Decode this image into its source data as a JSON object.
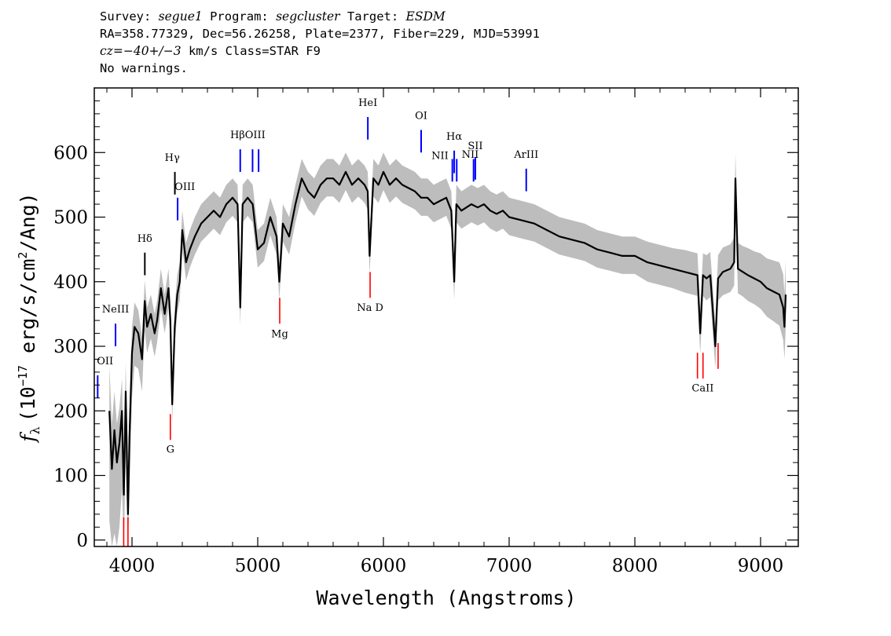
{
  "header": {
    "survey_label": "Survey:",
    "survey": "segue1",
    "program_label": "Program:",
    "program": "segcluster",
    "target_label": "Target:",
    "target": "ESDM",
    "line2": "RA=358.77329, Dec=56.26258, Plate=2377, Fiber=229, MJD=53991",
    "cz_label": "cz=",
    "cz_value": "−40+/−3",
    "cz_rest": " km/s Class=STAR F9",
    "line4": "No warnings."
  },
  "colors": {
    "flux": "#000000",
    "error_band": "#bdbdbd",
    "emission": "#0000ff",
    "absorption": "#ff0000"
  },
  "chart_data": {
    "type": "line",
    "title": "",
    "xlabel": "Wavelength (Angstroms)",
    "ylabel_prefix": "f",
    "ylabel_sub": "λ",
    "ylabel_paren_open": "(10",
    "ylabel_exp": "−17",
    "ylabel_units": " erg/s/cm",
    "ylabel_units_exp": "2",
    "ylabel_tail": "/Ang)",
    "xlim": [
      3700,
      9300
    ],
    "ylim": [
      -10,
      700
    ],
    "xticks": [
      4000,
      5000,
      6000,
      7000,
      8000,
      9000
    ],
    "xtick_labels": [
      "4000",
      "5000",
      "6000",
      "7000",
      "8000",
      "9000"
    ],
    "yticks": [
      0,
      100,
      200,
      300,
      400,
      500,
      600
    ],
    "ytick_labels": [
      "0",
      "100",
      "200",
      "300",
      "400",
      "500",
      "600"
    ],
    "series": [
      {
        "name": "flux",
        "x": [
          3820,
          3840,
          3860,
          3880,
          3900,
          3920,
          3935,
          3950,
          3968,
          3980,
          4000,
          4020,
          4050,
          4080,
          4101,
          4120,
          4150,
          4180,
          4200,
          4230,
          4260,
          4290,
          4305,
          4320,
          4340,
          4360,
          4380,
          4400,
          4430,
          4460,
          4500,
          4550,
          4600,
          4650,
          4700,
          4750,
          4800,
          4840,
          4861,
          4880,
          4920,
          4960,
          5000,
          5050,
          5100,
          5150,
          5172,
          5200,
          5250,
          5300,
          5350,
          5400,
          5450,
          5500,
          5550,
          5600,
          5650,
          5700,
          5750,
          5800,
          5850,
          5875,
          5890,
          5920,
          5960,
          6000,
          6050,
          6100,
          6150,
          6200,
          6250,
          6300,
          6350,
          6400,
          6450,
          6500,
          6540,
          6563,
          6580,
          6620,
          6660,
          6700,
          6750,
          6800,
          6850,
          6900,
          6950,
          7000,
          7100,
          7200,
          7300,
          7400,
          7500,
          7600,
          7700,
          7800,
          7900,
          8000,
          8100,
          8200,
          8300,
          8400,
          8498,
          8520,
          8542,
          8570,
          8600,
          8640,
          8662,
          8700,
          8760,
          8790,
          8800,
          8820,
          8860,
          8900,
          8950,
          9000,
          9050,
          9100,
          9150,
          9180,
          9190,
          9200
        ],
        "values": [
          200,
          110,
          170,
          120,
          150,
          200,
          70,
          230,
          40,
          160,
          290,
          330,
          320,
          280,
          370,
          330,
          350,
          320,
          340,
          390,
          350,
          390,
          340,
          210,
          330,
          380,
          400,
          480,
          430,
          450,
          470,
          490,
          500,
          510,
          500,
          520,
          530,
          520,
          360,
          520,
          530,
          520,
          450,
          460,
          500,
          470,
          400,
          490,
          470,
          520,
          560,
          540,
          530,
          550,
          560,
          560,
          550,
          570,
          550,
          560,
          550,
          540,
          440,
          560,
          550,
          570,
          550,
          560,
          550,
          545,
          540,
          530,
          530,
          520,
          525,
          530,
          510,
          400,
          520,
          510,
          515,
          520,
          515,
          520,
          510,
          505,
          510,
          500,
          495,
          490,
          480,
          470,
          465,
          460,
          450,
          445,
          440,
          440,
          430,
          425,
          420,
          415,
          410,
          320,
          410,
          405,
          410,
          300,
          405,
          415,
          420,
          430,
          560,
          420,
          415,
          410,
          405,
          400,
          390,
          385,
          380,
          360,
          330,
          380
        ],
        "error_lower": [
          -170,
          -170,
          -160,
          -140,
          -130,
          -120,
          -110,
          -100,
          -90,
          -80,
          -70,
          -60,
          -55,
          -50,
          -45,
          -40,
          -38,
          -36,
          -34,
          -32,
          -30,
          -30,
          -28,
          -28,
          -28,
          -28,
          -28,
          -28,
          -28,
          -28,
          -28,
          -28,
          -28,
          -28,
          -28,
          -28,
          -28,
          -28,
          -28,
          -28,
          -28,
          -28,
          -28,
          -28,
          -28,
          -28,
          -28,
          -28,
          -28,
          -28,
          -28,
          -28,
          -28,
          -28,
          -28,
          -28,
          -28,
          -28,
          -28,
          -28,
          -28,
          -28,
          -28,
          -28,
          -28,
          -28,
          -28,
          -28,
          -28,
          -28,
          -28,
          -28,
          -28,
          -28,
          -28,
          -28,
          -28,
          -28,
          -28,
          -28,
          -28,
          -28,
          -28,
          -28,
          -28,
          -28,
          -28,
          -28,
          -28,
          -28,
          -28,
          -28,
          -28,
          -28,
          -28,
          -28,
          -28,
          -28,
          -30,
          -30,
          -30,
          -32,
          -32,
          -32,
          -32,
          -34,
          -34,
          -34,
          -34,
          -36,
          -36,
          -36,
          -36,
          -38,
          -38,
          -40,
          -40,
          -42,
          -44,
          -46,
          -48,
          -50,
          -50,
          -50
        ],
        "error_upper": [
          70,
          70,
          60,
          60,
          55,
          50,
          50,
          45,
          45,
          40,
          40,
          38,
          36,
          34,
          32,
          30,
          30,
          30,
          30,
          30,
          30,
          30,
          30,
          30,
          30,
          30,
          30,
          30,
          30,
          30,
          30,
          30,
          30,
          30,
          30,
          30,
          30,
          30,
          30,
          30,
          30,
          30,
          30,
          30,
          30,
          30,
          30,
          30,
          30,
          30,
          30,
          30,
          30,
          30,
          30,
          30,
          30,
          30,
          30,
          30,
          30,
          30,
          30,
          30,
          30,
          30,
          30,
          30,
          30,
          30,
          30,
          30,
          30,
          30,
          30,
          30,
          30,
          30,
          30,
          30,
          30,
          30,
          30,
          30,
          30,
          30,
          30,
          30,
          30,
          30,
          30,
          30,
          30,
          30,
          30,
          30,
          30,
          30,
          32,
          32,
          32,
          34,
          34,
          34,
          34,
          36,
          36,
          36,
          36,
          38,
          38,
          38,
          38,
          40,
          40,
          42,
          42,
          44,
          46,
          48,
          50,
          52,
          52,
          52
        ]
      }
    ],
    "emission_lines": [
      {
        "label": "OII",
        "x": 3727,
        "y0": 220,
        "y1": 255,
        "lx": 3720,
        "ly": 272,
        "anchor": "start"
      },
      {
        "label": "NeIII",
        "x": 3869,
        "y0": 300,
        "y1": 335,
        "lx": 3869,
        "ly": 352,
        "anchor": "middle"
      },
      {
        "label": "Hδ",
        "x": 4102,
        "y0": 410,
        "y1": 445,
        "lx": 4102,
        "ly": 462,
        "anchor": "middle",
        "color": "#000000"
      },
      {
        "label": "Hγ",
        "x": 4341,
        "y0": 535,
        "y1": 570,
        "lx": 4320,
        "ly": 587,
        "anchor": "middle",
        "color": "#000000"
      },
      {
        "label": "OIII",
        "x": 4363,
        "y0": 495,
        "y1": 530,
        "lx": 4420,
        "ly": 542,
        "anchor": "middle"
      },
      {
        "label": "Hβ",
        "x": 4861,
        "y0": 570,
        "y1": 605,
        "lx": 4840,
        "ly": 622,
        "anchor": "middle"
      },
      {
        "label": "OIII",
        "x": 4959,
        "y0": 570,
        "y1": 605,
        "lx": 4980,
        "ly": 622,
        "anchor": "middle"
      },
      {
        "label": "OIII",
        "x": 5007,
        "y0": 570,
        "y1": 605,
        "lx": 5007,
        "ly": 622,
        "anchor": "middle",
        "hide_label": true
      },
      {
        "label": "HeI",
        "x": 5876,
        "y0": 620,
        "y1": 655,
        "lx": 5876,
        "ly": 672,
        "anchor": "middle"
      },
      {
        "label": "OI",
        "x": 6300,
        "y0": 600,
        "y1": 635,
        "lx": 6300,
        "ly": 652,
        "anchor": "middle"
      },
      {
        "label": "NII",
        "x": 6548,
        "y0": 555,
        "y1": 590,
        "lx": 6450,
        "ly": 590,
        "anchor": "middle"
      },
      {
        "label": "Hα",
        "x": 6563,
        "y0": 568,
        "y1": 603,
        "lx": 6563,
        "ly": 620,
        "anchor": "middle"
      },
      {
        "label": "NII",
        "x": 6583,
        "y0": 555,
        "y1": 590,
        "lx": 6583,
        "ly": 555,
        "anchor": "middle",
        "hide_label": true
      },
      {
        "label": "NII",
        "x": 6717,
        "y0": 555,
        "y1": 590,
        "lx": 6690,
        "ly": 592,
        "anchor": "middle"
      },
      {
        "label": "SII",
        "x": 6731,
        "y0": 558,
        "y1": 593,
        "lx": 6731,
        "ly": 605,
        "anchor": "middle"
      },
      {
        "label": "ArIII",
        "x": 7136,
        "y0": 540,
        "y1": 575,
        "lx": 7136,
        "ly": 592,
        "anchor": "middle"
      }
    ],
    "absorption_lines": [
      {
        "label": "",
        "x": 3934,
        "y0": -10,
        "y1": 35
      },
      {
        "label": "",
        "x": 3968,
        "y0": -10,
        "y1": 35
      },
      {
        "label": "G",
        "x": 4305,
        "y0": 155,
        "y1": 195,
        "lx": 4305,
        "ly": 135
      },
      {
        "label": "Mg",
        "x": 5175,
        "y0": 335,
        "y1": 375,
        "lx": 5175,
        "ly": 314
      },
      {
        "label": "Na D",
        "x": 5894,
        "y0": 375,
        "y1": 415,
        "lx": 5894,
        "ly": 355
      },
      {
        "label": "CaII",
        "x": 8498,
        "y0": 250,
        "y1": 290,
        "lx": 8540,
        "ly": 230
      },
      {
        "label": "",
        "x": 8542,
        "y0": 250,
        "y1": 290
      },
      {
        "label": "",
        "x": 8662,
        "y0": 265,
        "y1": 305
      }
    ]
  }
}
